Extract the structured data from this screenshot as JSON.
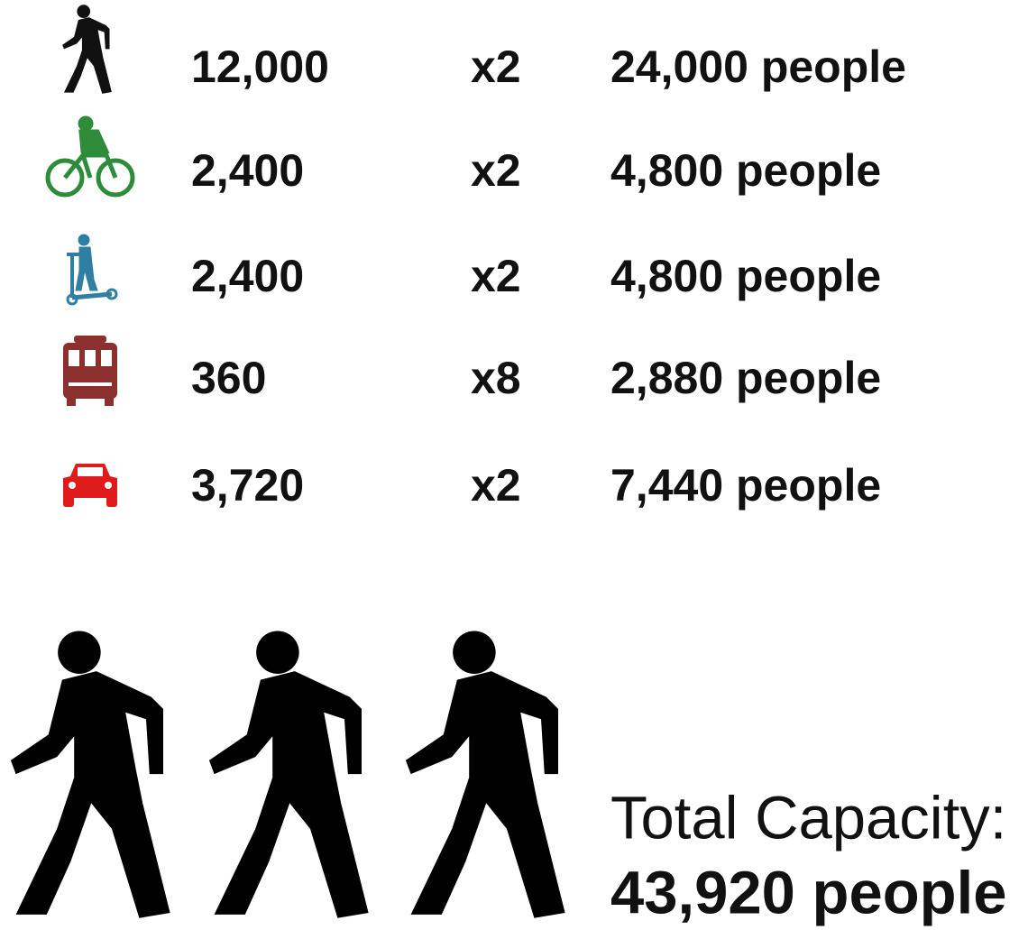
{
  "rows": [
    {
      "count": "12,000",
      "multiplier": "x2",
      "total": "24,000 people"
    },
    {
      "count": "2,400",
      "multiplier": "x2",
      "total": "4,800 people"
    },
    {
      "count": "2,400",
      "multiplier": "x2",
      "total": "4,800 people"
    },
    {
      "count": "360",
      "multiplier": "x8",
      "total": "2,880 people"
    },
    {
      "count": "3,720",
      "multiplier": "x2",
      "total": "7,440 people"
    }
  ],
  "total": {
    "label": "Total Capacity:",
    "value": "43,920 people"
  }
}
